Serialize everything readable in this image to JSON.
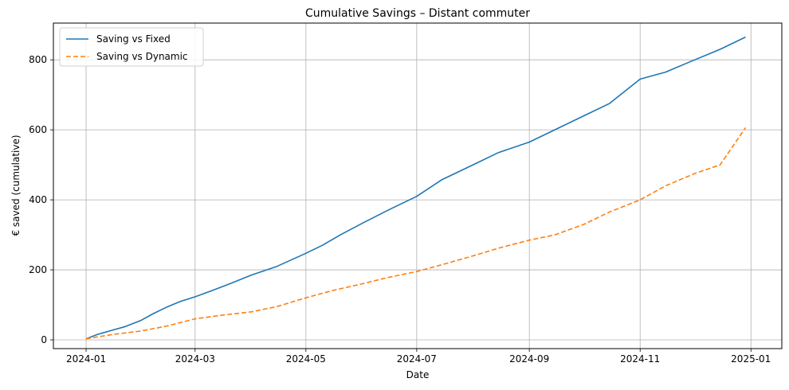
{
  "chart_data": {
    "type": "line",
    "title": "Cumulative Savings – Distant commuter",
    "xlabel": "Date",
    "ylabel": "€ saved (cumulative)",
    "x_tick_labels": [
      "2024-01",
      "2024-03",
      "2024-05",
      "2024-07",
      "2024-09",
      "2024-11",
      "2025-01"
    ],
    "x_tick_dates": [
      "2024-01-01",
      "2024-03-01",
      "2024-05-01",
      "2024-07-01",
      "2024-09-01",
      "2024-11-01",
      "2025-01-01"
    ],
    "y_ticks": [
      0,
      200,
      400,
      600,
      800
    ],
    "xlim": [
      "2023-12-14",
      "2025-01-18"
    ],
    "ylim": [
      -25,
      905
    ],
    "grid": true,
    "legend_position": "upper left",
    "series": [
      {
        "name": "Saving vs Fixed",
        "color": "#1f77b4",
        "style": "solid",
        "points": [
          [
            "2024-01-01",
            3
          ],
          [
            "2024-01-07",
            15
          ],
          [
            "2024-01-15",
            27
          ],
          [
            "2024-01-22",
            37
          ],
          [
            "2024-01-31",
            55
          ],
          [
            "2024-02-07",
            75
          ],
          [
            "2024-02-15",
            95
          ],
          [
            "2024-02-22",
            110
          ],
          [
            "2024-03-01",
            123
          ],
          [
            "2024-03-10",
            140
          ],
          [
            "2024-03-20",
            160
          ],
          [
            "2024-04-01",
            185
          ],
          [
            "2024-04-15",
            210
          ],
          [
            "2024-04-30",
            245
          ],
          [
            "2024-05-10",
            270
          ],
          [
            "2024-05-20",
            300
          ],
          [
            "2024-06-01",
            333
          ],
          [
            "2024-06-15",
            370
          ],
          [
            "2024-07-01",
            410
          ],
          [
            "2024-07-15",
            458
          ],
          [
            "2024-08-01",
            500
          ],
          [
            "2024-08-15",
            535
          ],
          [
            "2024-09-01",
            565
          ],
          [
            "2024-09-15",
            600
          ],
          [
            "2024-10-01",
            640
          ],
          [
            "2024-10-15",
            675
          ],
          [
            "2024-11-01",
            745
          ],
          [
            "2024-11-15",
            765
          ],
          [
            "2024-12-01",
            800
          ],
          [
            "2024-12-15",
            830
          ],
          [
            "2024-12-29",
            865
          ]
        ]
      },
      {
        "name": "Saving vs Dynamic",
        "color": "#ff7f0e",
        "style": "dashed",
        "points": [
          [
            "2024-01-01",
            3
          ],
          [
            "2024-01-15",
            15
          ],
          [
            "2024-01-31",
            25
          ],
          [
            "2024-02-15",
            40
          ],
          [
            "2024-03-01",
            60
          ],
          [
            "2024-03-15",
            70
          ],
          [
            "2024-04-01",
            80
          ],
          [
            "2024-04-15",
            95
          ],
          [
            "2024-05-01",
            120
          ],
          [
            "2024-05-15",
            140
          ],
          [
            "2024-06-01",
            160
          ],
          [
            "2024-06-15",
            178
          ],
          [
            "2024-07-01",
            195
          ],
          [
            "2024-07-15",
            215
          ],
          [
            "2024-08-01",
            240
          ],
          [
            "2024-08-15",
            262
          ],
          [
            "2024-09-01",
            285
          ],
          [
            "2024-09-15",
            300
          ],
          [
            "2024-10-01",
            330
          ],
          [
            "2024-10-15",
            365
          ],
          [
            "2024-11-01",
            400
          ],
          [
            "2024-11-15",
            440
          ],
          [
            "2024-12-01",
            475
          ],
          [
            "2024-12-15",
            500
          ],
          [
            "2024-12-29",
            606
          ]
        ]
      }
    ]
  }
}
